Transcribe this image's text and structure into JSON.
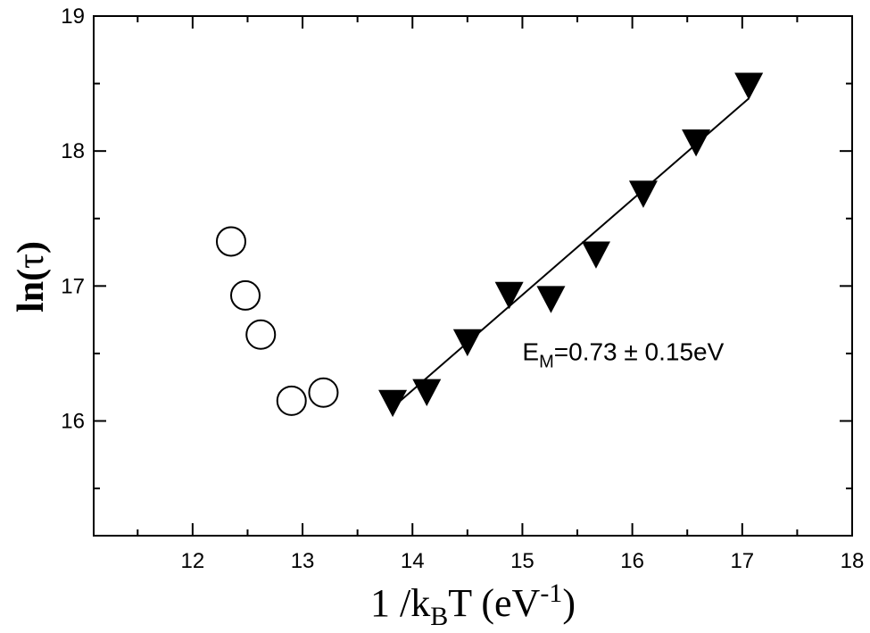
{
  "chart_data": {
    "type": "scatter",
    "xlim": [
      11.1,
      18.0
    ],
    "ylim": [
      15.15,
      19.0
    ],
    "x_ticks": [
      12,
      13,
      14,
      15,
      16,
      17,
      18
    ],
    "y_ticks": [
      16,
      17,
      18,
      19
    ],
    "x_tick_labels": [
      "12",
      "13",
      "14",
      "15",
      "16",
      "17",
      "18"
    ],
    "y_tick_labels": [
      "16",
      "17",
      "18",
      "19"
    ],
    "xlabel": {
      "base": "1 /k",
      "sub": "B",
      "mid": "T (eV",
      "sup": "-1",
      "end": ")"
    },
    "ylabel": {
      "base": "ln(",
      "greek": "τ",
      "end": ")"
    },
    "grid": false,
    "legend": "none",
    "series": [
      {
        "marker": "open-circle",
        "color": "#000000",
        "points": [
          {
            "x": 12.35,
            "y": 17.33
          },
          {
            "x": 12.48,
            "y": 16.93
          },
          {
            "x": 12.62,
            "y": 16.64
          },
          {
            "x": 12.9,
            "y": 16.15
          },
          {
            "x": 13.19,
            "y": 16.21
          }
        ]
      },
      {
        "marker": "filled-triangle-down",
        "color": "#000000",
        "points": [
          {
            "x": 13.82,
            "y": 16.14
          },
          {
            "x": 14.13,
            "y": 16.22
          },
          {
            "x": 14.5,
            "y": 16.59
          },
          {
            "x": 14.88,
            "y": 16.94
          },
          {
            "x": 15.26,
            "y": 16.91
          },
          {
            "x": 15.67,
            "y": 17.24
          },
          {
            "x": 16.1,
            "y": 17.69
          },
          {
            "x": 16.58,
            "y": 18.07
          },
          {
            "x": 17.06,
            "y": 18.49
          }
        ]
      }
    ],
    "fit_line": {
      "x": [
        13.82,
        17.06
      ],
      "y": [
        16.1,
        18.39
      ],
      "color": "#000000"
    },
    "annotations": [
      {
        "text_base": "E",
        "text_sub": "M",
        "text_rest": "=0.73 ± 0.15eV",
        "x": 15.0,
        "y": 16.45
      }
    ]
  }
}
